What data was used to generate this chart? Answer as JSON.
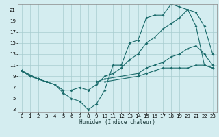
{
  "xlabel": "Humidex (Indice chaleur)",
  "bg_color": "#d4edf0",
  "grid_color": "#a8cdd0",
  "line_color": "#1a6b6b",
  "xlim": [
    -0.5,
    23.5
  ],
  "ylim": [
    2.5,
    22
  ],
  "xticks": [
    0,
    1,
    2,
    3,
    4,
    5,
    6,
    7,
    8,
    9,
    10,
    11,
    12,
    13,
    14,
    15,
    16,
    17,
    18,
    19,
    20,
    21,
    22,
    23
  ],
  "yticks": [
    3,
    5,
    7,
    9,
    11,
    13,
    15,
    17,
    19,
    21
  ],
  "line1_x": [
    0,
    1,
    2,
    3,
    4,
    5,
    6,
    7,
    8,
    9,
    10,
    11,
    12,
    13,
    14,
    15,
    16,
    17,
    18,
    19,
    20,
    21,
    22,
    23
  ],
  "line1_y": [
    10,
    9,
    8.5,
    8,
    7.5,
    6,
    5,
    4.5,
    3,
    4,
    6.5,
    11,
    11,
    15,
    15.5,
    19.5,
    20,
    20,
    22,
    21.5,
    21,
    18,
    11,
    10.5
  ],
  "line2_x": [
    0,
    1,
    2,
    3,
    4,
    5,
    6,
    7,
    8,
    9,
    10,
    11,
    12,
    13,
    14,
    15,
    16,
    17,
    18,
    19,
    20,
    21,
    22,
    23
  ],
  "line2_y": [
    10,
    9,
    8.5,
    8,
    7.5,
    6.5,
    6.5,
    7,
    6.5,
    7.5,
    9,
    9.5,
    10.5,
    12,
    13,
    15,
    16,
    17.5,
    18.5,
    19.5,
    21,
    20.5,
    18,
    13
  ],
  "line3_x": [
    0,
    2,
    3,
    9,
    10,
    14,
    15,
    16,
    17,
    18,
    19,
    20,
    21,
    22,
    23
  ],
  "line3_y": [
    10,
    8.5,
    8,
    8,
    8.5,
    9.5,
    10.5,
    11,
    11.5,
    12.5,
    13,
    14,
    14.5,
    13,
    11
  ],
  "line4_x": [
    0,
    2,
    3,
    9,
    10,
    14,
    15,
    16,
    17,
    18,
    19,
    20,
    21,
    22,
    23
  ],
  "line4_y": [
    10,
    8.5,
    8,
    8,
    8,
    9,
    9.5,
    10,
    10.5,
    10.5,
    10.5,
    10.5,
    11,
    11,
    10.5
  ]
}
